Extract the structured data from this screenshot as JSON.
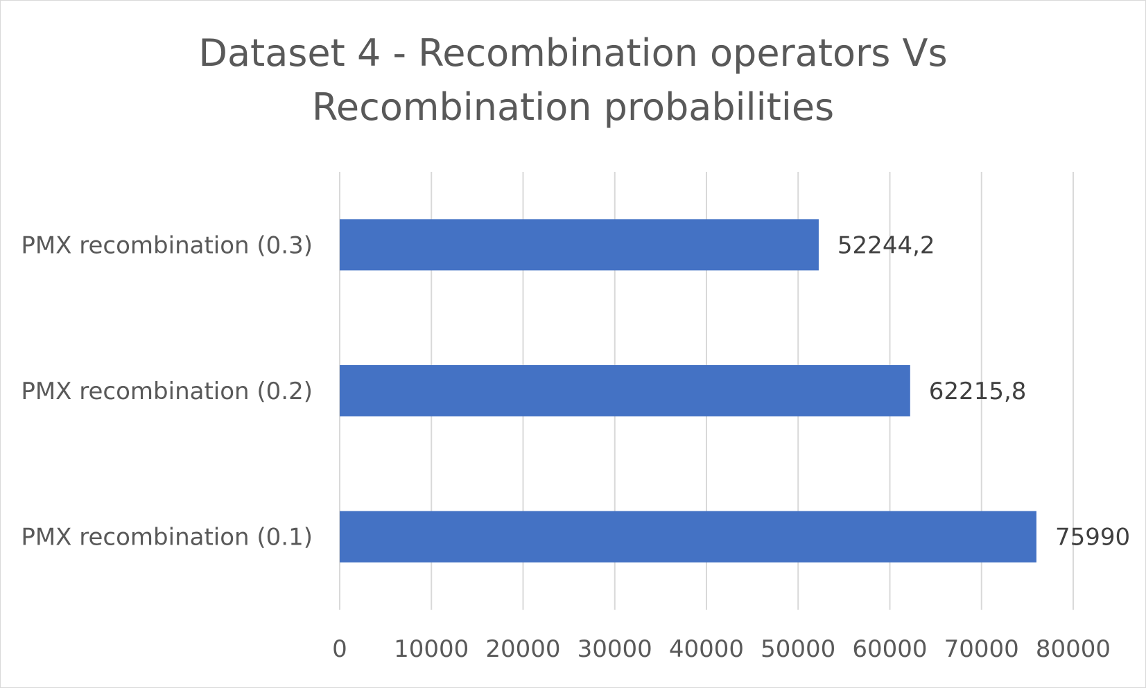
{
  "chart_data": {
    "type": "bar",
    "orientation": "horizontal",
    "title_lines": [
      "Dataset 4 - Recombination operators Vs",
      "Recombination probabilities"
    ],
    "categories": [
      "PMX recombination (0.3)",
      "PMX recombination (0.2)",
      "PMX recombination (0.1)"
    ],
    "values": [
      52244.2,
      62215.8,
      75990
    ],
    "data_labels": [
      "52244,2",
      "62215,8",
      "75990"
    ],
    "xlim": [
      0,
      80000
    ],
    "x_ticks": [
      0,
      10000,
      20000,
      30000,
      40000,
      50000,
      60000,
      70000,
      80000
    ],
    "x_tick_labels": [
      "0",
      "10000",
      "20000",
      "30000",
      "40000",
      "50000",
      "60000",
      "70000",
      "80000"
    ],
    "xlabel": "",
    "ylabel": "",
    "grid": "vertical",
    "legend": "none",
    "bar_color": "#4472c4",
    "grid_color": "#d9d9d9"
  }
}
